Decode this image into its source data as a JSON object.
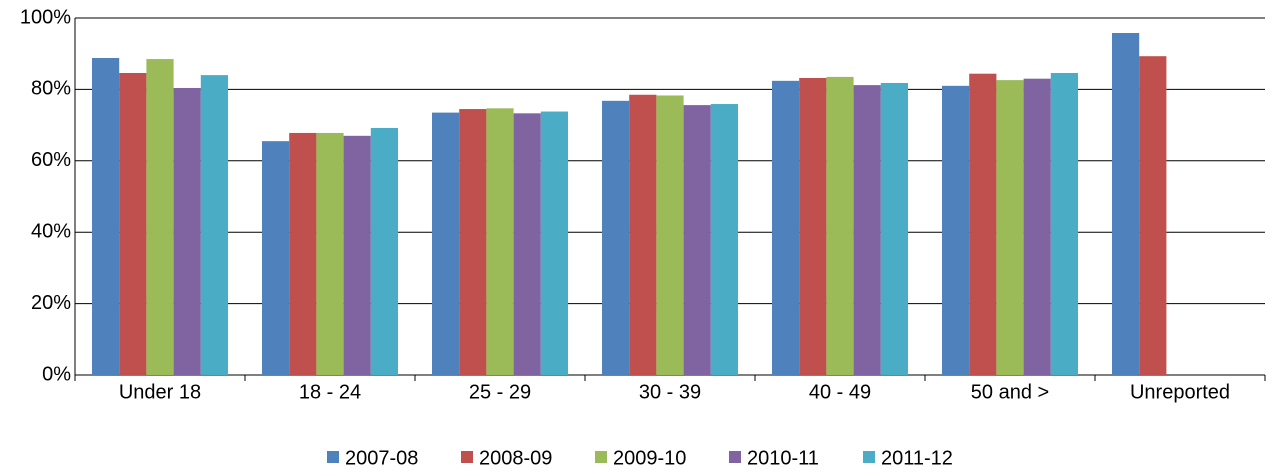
{
  "chart_data": {
    "type": "bar",
    "categories": [
      "Under 18",
      "18 - 24",
      "25 - 29",
      "30 - 39",
      "40 - 49",
      "50 and >",
      "Unreported"
    ],
    "series": [
      {
        "name": "2007-08",
        "color": "#4f81bd",
        "values": [
          88.8,
          65.5,
          73.5,
          76.8,
          82.4,
          81,
          95.8
        ]
      },
      {
        "name": "2008-09",
        "color": "#c0504d",
        "values": [
          84.6,
          67.8,
          74.5,
          78.5,
          83.2,
          84.4,
          89.3
        ]
      },
      {
        "name": "2009-10",
        "color": "#9bbb59",
        "values": [
          88.5,
          67.8,
          74.7,
          78.3,
          83.5,
          82.6,
          null
        ]
      },
      {
        "name": "2010-11",
        "color": "#8064a2",
        "values": [
          80.4,
          67,
          73.3,
          75.6,
          81.2,
          83,
          null
        ]
      },
      {
        "name": "2011-12",
        "color": "#4bacc6",
        "values": [
          84,
          69.2,
          73.8,
          75.9,
          81.8,
          84.6,
          null
        ]
      }
    ],
    "ylim": [
      0,
      100
    ],
    "yticks": [
      {
        "value": 0,
        "label": "0%"
      },
      {
        "value": 20,
        "label": "20%"
      },
      {
        "value": 40,
        "label": "40%"
      },
      {
        "value": 60,
        "label": "60%"
      },
      {
        "value": 80,
        "label": "80%"
      },
      {
        "value": 100,
        "label": "100%"
      }
    ],
    "grid": true,
    "legend": "bottom"
  }
}
